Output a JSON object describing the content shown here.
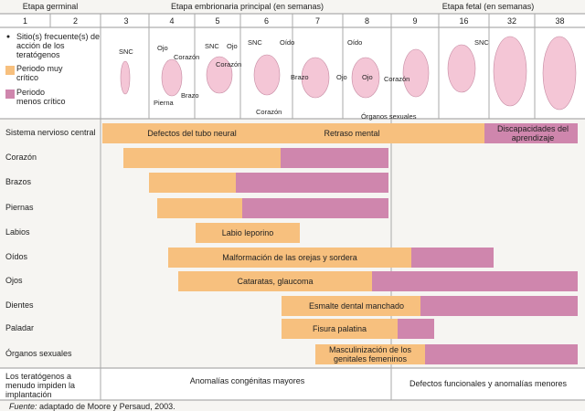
{
  "header": {
    "stages": [
      "Etapa germinal",
      "Etapa embrionaria principal (en semanas)",
      "Etapa fetal (en semanas)"
    ],
    "weeks": [
      "1",
      "2",
      "3",
      "4",
      "5",
      "6",
      "7",
      "8",
      "9",
      "16",
      "32",
      "38"
    ]
  },
  "legend": {
    "site": "Sitio(s) frecuente(s) de acción de los teratógenos",
    "critical": "Periodo muy crítico",
    "less": "Periodo menos crítico"
  },
  "embryo_labels": [
    "SNC",
    "Ojo",
    "Corazón",
    "Brazo",
    "Pierna",
    "SNC",
    "Ojo",
    "Corazón",
    "SNC",
    "Oído",
    "Brazo",
    "Corazón",
    "Ojo",
    "Oído",
    "Ojo",
    "Corazón",
    "Órganos sexuales",
    "SNC"
  ],
  "rows": [
    {
      "label": "Sistema nervioso central",
      "texts": [
        "Defectos del tubo neural",
        "Retraso mental",
        "Discapacidades del aprendizaje"
      ]
    },
    {
      "label": "Corazón",
      "texts": []
    },
    {
      "label": "Brazos",
      "texts": []
    },
    {
      "label": "Piernas",
      "texts": []
    },
    {
      "label": "Labios",
      "texts": [
        "Labio leporino"
      ]
    },
    {
      "label": "Oídos",
      "texts": [
        "Malformación de las orejas y sordera"
      ]
    },
    {
      "label": "Ojos",
      "texts": [
        "Cataratas, glaucoma"
      ]
    },
    {
      "label": "Dientes",
      "texts": [
        "Esmalte dental manchado"
      ]
    },
    {
      "label": "Paladar",
      "texts": [
        "Fisura palatina"
      ]
    },
    {
      "label": "Órganos sexuales",
      "texts": [
        "Masculinización de los genitales femeninos"
      ]
    }
  ],
  "footer": {
    "left": "Los teratógenos a menudo impiden la implantación",
    "middle": "Anomalías congénitas mayores",
    "right": "Defectos funcionales y anomalías menores"
  },
  "source": {
    "label": "Fuente:",
    "text": "adaptado de Moore y Persaud, 2003."
  }
}
